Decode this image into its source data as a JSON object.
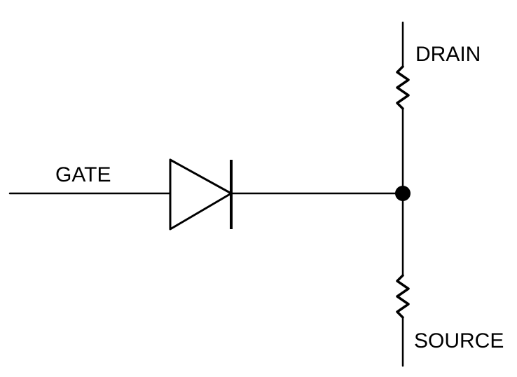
{
  "diagram": {
    "type": "circuit-schematic",
    "labels": {
      "gate": "GATE",
      "drain": "DRAIN",
      "source": "SOURCE"
    },
    "components": [
      {
        "kind": "diode",
        "connects": [
          "gate",
          "junction"
        ]
      },
      {
        "kind": "resistor",
        "connects": [
          "drain",
          "junction"
        ]
      },
      {
        "kind": "resistor",
        "connects": [
          "junction",
          "source"
        ]
      }
    ],
    "colors": {
      "stroke": "#000000",
      "background": "#ffffff"
    }
  }
}
